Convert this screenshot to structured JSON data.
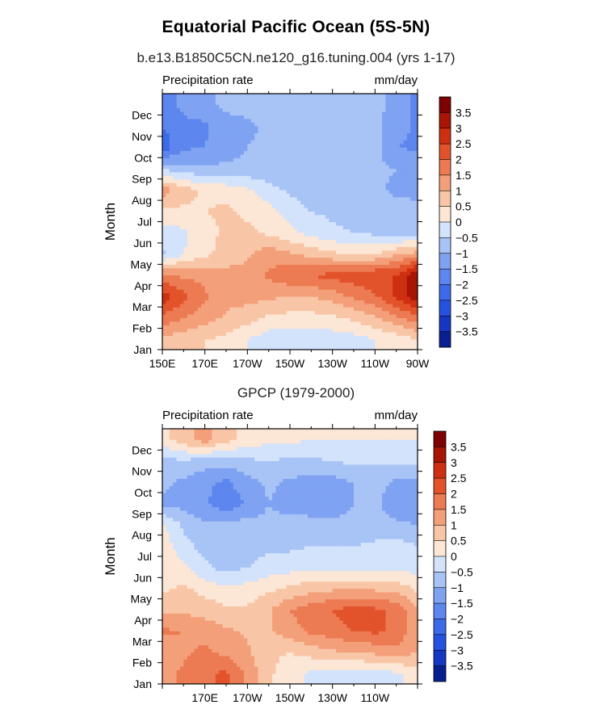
{
  "page": {
    "title": "Equatorial Pacific Ocean (5S-5N)"
  },
  "colors": {
    "levels": [
      -3.5,
      -3,
      -2.5,
      -2,
      -1.5,
      -1,
      -0.5,
      0,
      0.5,
      1,
      1.5,
      2,
      2.5,
      3,
      3.5
    ],
    "palette": [
      "#0a1f8f",
      "#1537c2",
      "#2652e2",
      "#3d6ae8",
      "#5d86ee",
      "#7fa2f2",
      "#a8c3f6",
      "#d2e3fb",
      "#fce6d6",
      "#f8c6a6",
      "#f3a07a",
      "#ec7a52",
      "#e2532b",
      "#cd2f10",
      "#a81505",
      "#7d0202"
    ]
  },
  "chart_data": [
    {
      "type": "heatmap",
      "subtitle": "b.e13.B1850C5CN.ne120_g16.tuning.004 (yrs 1-17)",
      "left_label": "Precipitation rate",
      "right_label": "mm/day",
      "ylabel": "Month",
      "xlim": [
        150,
        270
      ],
      "x_ticks": [
        150,
        170,
        190,
        210,
        230,
        250,
        270
      ],
      "x_tick_labels": [
        "150E",
        "170E",
        "170W",
        "150W",
        "130W",
        "110W",
        "90W"
      ],
      "y_tick_labels": [
        "Jan",
        "Feb",
        "Mar",
        "Apr",
        "May",
        "Jun",
        "Jul",
        "Aug",
        "Sep",
        "Oct",
        "Nov",
        "Dec"
      ],
      "colorbar_labels": [
        "3.5",
        "3",
        "2.5",
        "2",
        "1.5",
        "1",
        "0.5",
        "0",
        "−0.5",
        "−1",
        "−1.5",
        "−2",
        "−2.5",
        "−3",
        "−3.5"
      ],
      "x": [
        150,
        160,
        170,
        180,
        190,
        200,
        210,
        220,
        230,
        240,
        250,
        260,
        270
      ],
      "z": [
        [
          0.9,
          0.7,
          0.5,
          0.4,
          0.0,
          -0.3,
          -0.3,
          -0.4,
          -0.3,
          -0.2,
          0.0,
          0.2,
          0.5
        ],
        [
          1.8,
          1.5,
          1.2,
          0.9,
          0.7,
          0.4,
          0.3,
          0.3,
          0.4,
          0.6,
          0.9,
          1.4,
          1.8
        ],
        [
          2.8,
          2.2,
          1.6,
          1.2,
          1.2,
          1.1,
          1.0,
          1.0,
          1.2,
          1.6,
          1.9,
          2.6,
          3.3
        ],
        [
          1.6,
          1.4,
          1.3,
          1.2,
          1.2,
          1.6,
          1.9,
          2.0,
          2.2,
          2.3,
          2.5,
          2.5,
          3.6
        ],
        [
          -0.6,
          0.0,
          0.4,
          0.7,
          0.9,
          1.3,
          1.1,
          0.8,
          0.6,
          0.5,
          0.5,
          0.9,
          1.2
        ],
        [
          -0.3,
          -0.1,
          0.3,
          0.6,
          0.6,
          0.4,
          0.1,
          -0.2,
          -0.4,
          -0.5,
          -0.6,
          -0.7,
          -0.7
        ],
        [
          0.4,
          0.4,
          0.5,
          0.6,
          0.4,
          0.2,
          -0.2,
          -0.5,
          -0.6,
          -0.7,
          -0.8,
          -0.8,
          -0.9
        ],
        [
          1.3,
          0.7,
          0.4,
          0.3,
          0.1,
          -0.3,
          -0.6,
          -0.8,
          -0.9,
          -0.9,
          -0.9,
          -1.1,
          -1.1
        ],
        [
          -0.6,
          -0.8,
          -0.9,
          -0.9,
          -0.9,
          -0.9,
          -1.0,
          -1.0,
          -1.0,
          -1.0,
          -0.9,
          -1.0,
          -1.1
        ],
        [
          -2.3,
          -1.6,
          -1.5,
          -1.2,
          -1.0,
          -0.9,
          -0.8,
          -0.8,
          -0.9,
          -0.9,
          -0.8,
          -1.5,
          -1.6
        ],
        [
          -2.0,
          -1.7,
          -1.6,
          -1.2,
          -1.1,
          -0.9,
          -0.8,
          -0.8,
          -0.8,
          -0.8,
          -0.9,
          -1.3,
          -1.6
        ],
        [
          -1.8,
          -1.3,
          -1.1,
          -0.9,
          -0.8,
          -0.8,
          -0.8,
          -0.8,
          -0.8,
          -0.8,
          -0.8,
          -1.2,
          -1.6
        ]
      ]
    },
    {
      "type": "heatmap",
      "subtitle": "GPCP (1979-2000)",
      "left_label": "Precipitation rate",
      "right_label": "mm/day",
      "ylabel": "Month",
      "xlim": [
        150,
        270
      ],
      "x_ticks": [
        150,
        170,
        190,
        210,
        230,
        250,
        270
      ],
      "x_tick_labels": [
        "",
        "170E",
        "170W",
        "150W",
        "130W",
        "110W",
        ""
      ],
      "y_tick_labels": [
        "Jan",
        "Feb",
        "Mar",
        "Apr",
        "May",
        "Jun",
        "Jul",
        "Aug",
        "Sep",
        "Oct",
        "Nov",
        "Dec"
      ],
      "colorbar_labels": [
        "3.5",
        "3",
        "2.5",
        "2",
        "1.5",
        "1",
        "0.5",
        "0",
        "−0.5",
        "−1",
        "−1.5",
        "−2",
        "−2.5",
        "−3",
        "−3.5"
      ],
      "x": [
        150,
        160,
        170,
        180,
        190,
        200,
        210,
        220,
        230,
        240,
        250,
        260,
        270
      ],
      "z": [
        [
          1.3,
          1.6,
          1.9,
          2.1,
          1.4,
          0.6,
          0.2,
          -0.1,
          -0.3,
          -0.3,
          -0.2,
          -0.1,
          0.2
        ],
        [
          1.2,
          1.4,
          1.6,
          1.4,
          1.1,
          0.6,
          0.5,
          0.7,
          0.9,
          1.0,
          1.1,
          1.3,
          1.0
        ],
        [
          1.6,
          1.5,
          1.3,
          1.1,
          0.9,
          0.9,
          1.3,
          1.6,
          1.8,
          2.0,
          2.1,
          1.9,
          1.1
        ],
        [
          0.8,
          0.9,
          0.8,
          0.6,
          0.6,
          0.9,
          1.5,
          1.8,
          2.0,
          2.2,
          2.1,
          1.9,
          1.1
        ],
        [
          0.4,
          0.6,
          0.3,
          0.1,
          0.2,
          0.4,
          0.6,
          0.8,
          0.9,
          1.0,
          0.9,
          0.8,
          0.4
        ],
        [
          0.3,
          0.1,
          -0.4,
          -0.7,
          -0.5,
          -0.3,
          -0.2,
          -0.1,
          -0.1,
          -0.2,
          -0.1,
          -0.1,
          -0.2
        ],
        [
          0.3,
          -0.3,
          -0.7,
          -0.8,
          -0.7,
          -0.6,
          -0.6,
          -0.5,
          -0.5,
          -0.5,
          -0.4,
          -0.3,
          -0.5
        ],
        [
          0.1,
          -0.6,
          -0.9,
          -0.9,
          -0.8,
          -0.9,
          -0.8,
          -0.8,
          -0.9,
          -0.9,
          -0.8,
          -0.9,
          -1.0
        ],
        [
          -1.1,
          -1.2,
          -1.4,
          -1.9,
          -1.4,
          -1.0,
          -1.2,
          -1.3,
          -1.2,
          -1.0,
          -0.9,
          -1.3,
          -1.3
        ],
        [
          -0.9,
          -1.1,
          -1.4,
          -1.6,
          -1.2,
          -0.9,
          -1.1,
          -1.2,
          -1.2,
          -1.0,
          -0.8,
          -1.1,
          -1.1
        ],
        [
          -0.6,
          -0.6,
          -0.7,
          -0.8,
          -0.6,
          -0.5,
          -0.6,
          -0.6,
          -0.5,
          -0.4,
          -0.4,
          -0.4,
          -0.4
        ],
        [
          0.3,
          0.8,
          1.2,
          0.7,
          0.3,
          0.1,
          0.1,
          0.0,
          0.0,
          0.0,
          0.0,
          0.0,
          0.0
        ]
      ]
    }
  ]
}
